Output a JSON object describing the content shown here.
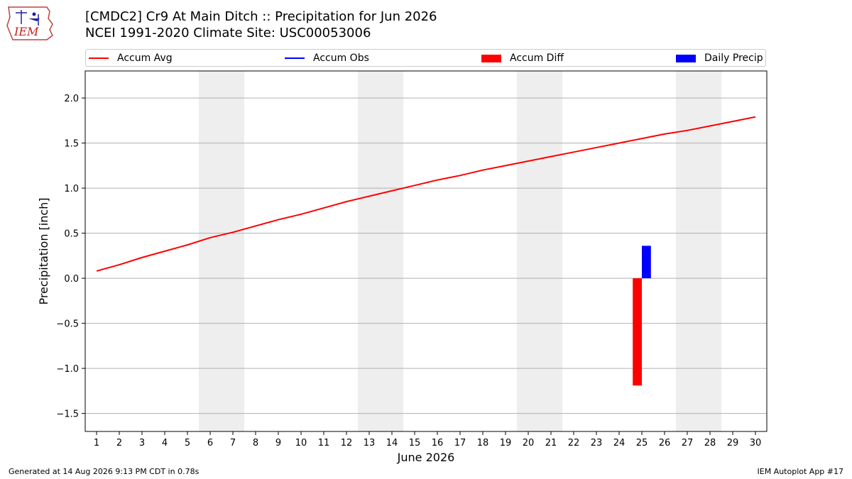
{
  "header": {
    "title_line1": "[CMDC2] Cr9 At Main Ditch :: Precipitation for Jun 2026",
    "title_line2": "NCEI 1991-2020 Climate Site: USC00053006",
    "logo_text": "IEM"
  },
  "legend": {
    "items": [
      {
        "label": "Accum Avg",
        "kind": "line",
        "color": "#ff0000"
      },
      {
        "label": "Accum Obs",
        "kind": "line",
        "color": "#0000ff"
      },
      {
        "label": "Accum Diff",
        "kind": "rect",
        "color": "#ff0000"
      },
      {
        "label": "Daily Precip",
        "kind": "rect",
        "color": "#0000ff"
      }
    ]
  },
  "footer": {
    "left": "Generated at 14 Aug 2026 9:13 PM CDT in 0.78s",
    "right": "IEM Autoplot App #17"
  },
  "chart_data": {
    "type": "line",
    "title": "[CMDC2] Cr9 At Main Ditch :: Precipitation for Jun 2026",
    "subtitle": "NCEI 1991-2020 Climate Site: USC00053006",
    "xlabel": "June 2026",
    "ylabel": "Precipitation [inch]",
    "xlim": [
      0.5,
      30.5
    ],
    "ylim": [
      -1.7,
      2.3
    ],
    "x_ticks": [
      1,
      2,
      3,
      4,
      5,
      6,
      7,
      8,
      9,
      10,
      11,
      12,
      13,
      14,
      15,
      16,
      17,
      18,
      19,
      20,
      21,
      22,
      23,
      24,
      25,
      26,
      27,
      28,
      29,
      30
    ],
    "y_ticks": [
      -1.5,
      -1.0,
      -0.5,
      0.0,
      0.5,
      1.0,
      1.5,
      2.0
    ],
    "y_tick_labels": [
      "−1.5",
      "−1.0",
      "−0.5",
      "0.0",
      "0.5",
      "1.0",
      "1.5",
      "2.0"
    ],
    "grid": "horizontal",
    "weekend_shading": [
      [
        6,
        7
      ],
      [
        13,
        14
      ],
      [
        20,
        21
      ],
      [
        27,
        28
      ]
    ],
    "series": [
      {
        "name": "Accum Avg",
        "type": "line",
        "color": "#ff0000",
        "x": [
          1,
          2,
          3,
          4,
          5,
          6,
          7,
          8,
          9,
          10,
          11,
          12,
          13,
          14,
          15,
          16,
          17,
          18,
          19,
          20,
          21,
          22,
          23,
          24,
          25,
          26,
          27,
          28,
          29,
          30
        ],
        "values": [
          0.08,
          0.15,
          0.23,
          0.3,
          0.37,
          0.45,
          0.51,
          0.58,
          0.65,
          0.71,
          0.78,
          0.85,
          0.91,
          0.97,
          1.03,
          1.09,
          1.14,
          1.2,
          1.25,
          1.3,
          1.35,
          1.4,
          1.45,
          1.5,
          1.55,
          1.6,
          1.64,
          1.69,
          1.74,
          1.79
        ]
      },
      {
        "name": "Accum Diff",
        "type": "bar",
        "color": "#ff0000",
        "x": [
          25
        ],
        "values": [
          -1.19
        ]
      },
      {
        "name": "Daily Precip",
        "type": "bar",
        "color": "#0000ff",
        "x": [
          25
        ],
        "values": [
          0.36
        ]
      }
    ]
  }
}
